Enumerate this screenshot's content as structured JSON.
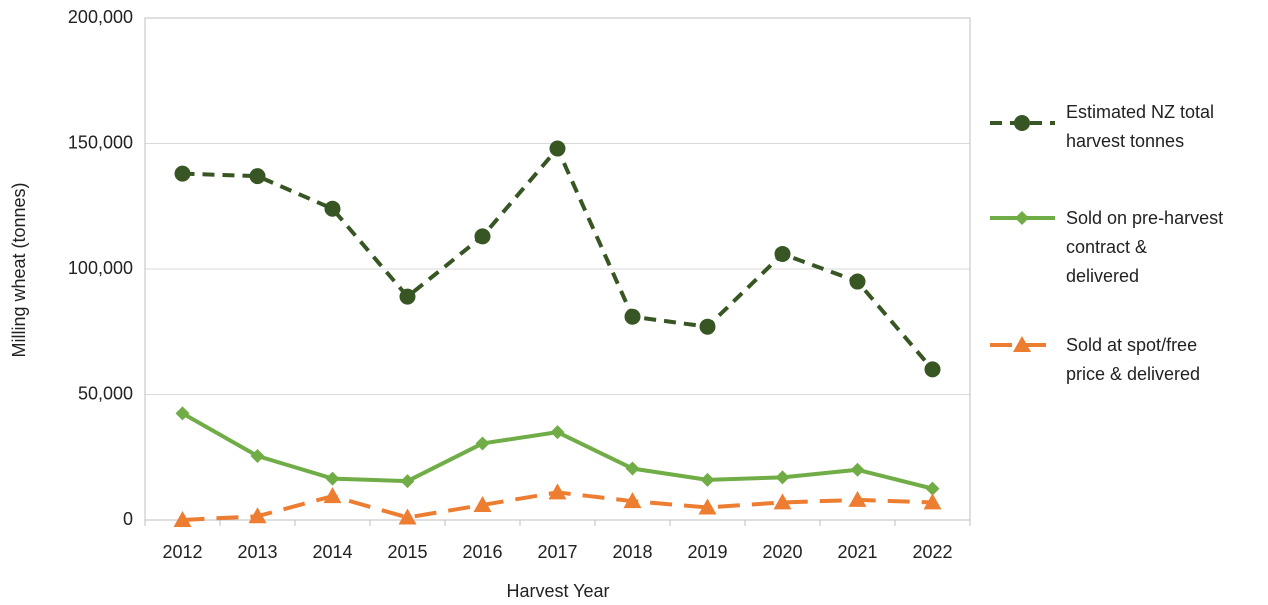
{
  "chart_data": {
    "type": "line",
    "x_label": "Harvest Year",
    "y_label": "Milling wheat (tonnes)",
    "categories": [
      "2012",
      "2013",
      "2014",
      "2015",
      "2016",
      "2017",
      "2018",
      "2019",
      "2020",
      "2021",
      "2022"
    ],
    "series": [
      {
        "name": "Estimated NZ total\nharvest tonnes",
        "color": "#375623",
        "dashed": true,
        "marker": "circle",
        "values": [
          138000,
          137000,
          124000,
          89000,
          113000,
          148000,
          81000,
          77000,
          106000,
          95000,
          60000
        ]
      },
      {
        "name": "Sold on pre-harvest\n contract &\n delivered",
        "color": "#70ad47",
        "dashed": false,
        "marker": "diamond",
        "values": [
          42500,
          25500,
          16500,
          15500,
          30500,
          35000,
          20500,
          16000,
          17000,
          20000,
          12500
        ]
      },
      {
        "name": "Sold at spot/free\n price & delivered",
        "color": "#ed7d31",
        "dashed": true,
        "marker": "triangle",
        "values": [
          0,
          1500,
          9500,
          1000,
          6000,
          11000,
          7500,
          5000,
          7000,
          8000,
          7000
        ]
      }
    ],
    "ylim": [
      0,
      200000
    ],
    "yticks": [
      0,
      {
        "value": 50000,
        "label": "50,000"
      },
      {
        "value": 100000,
        "label": "100,000"
      },
      {
        "value": 150000,
        "label": "150,000"
      },
      {
        "value": 200000,
        "label": "200,000"
      }
    ],
    "grid": true,
    "legend": "right"
  }
}
